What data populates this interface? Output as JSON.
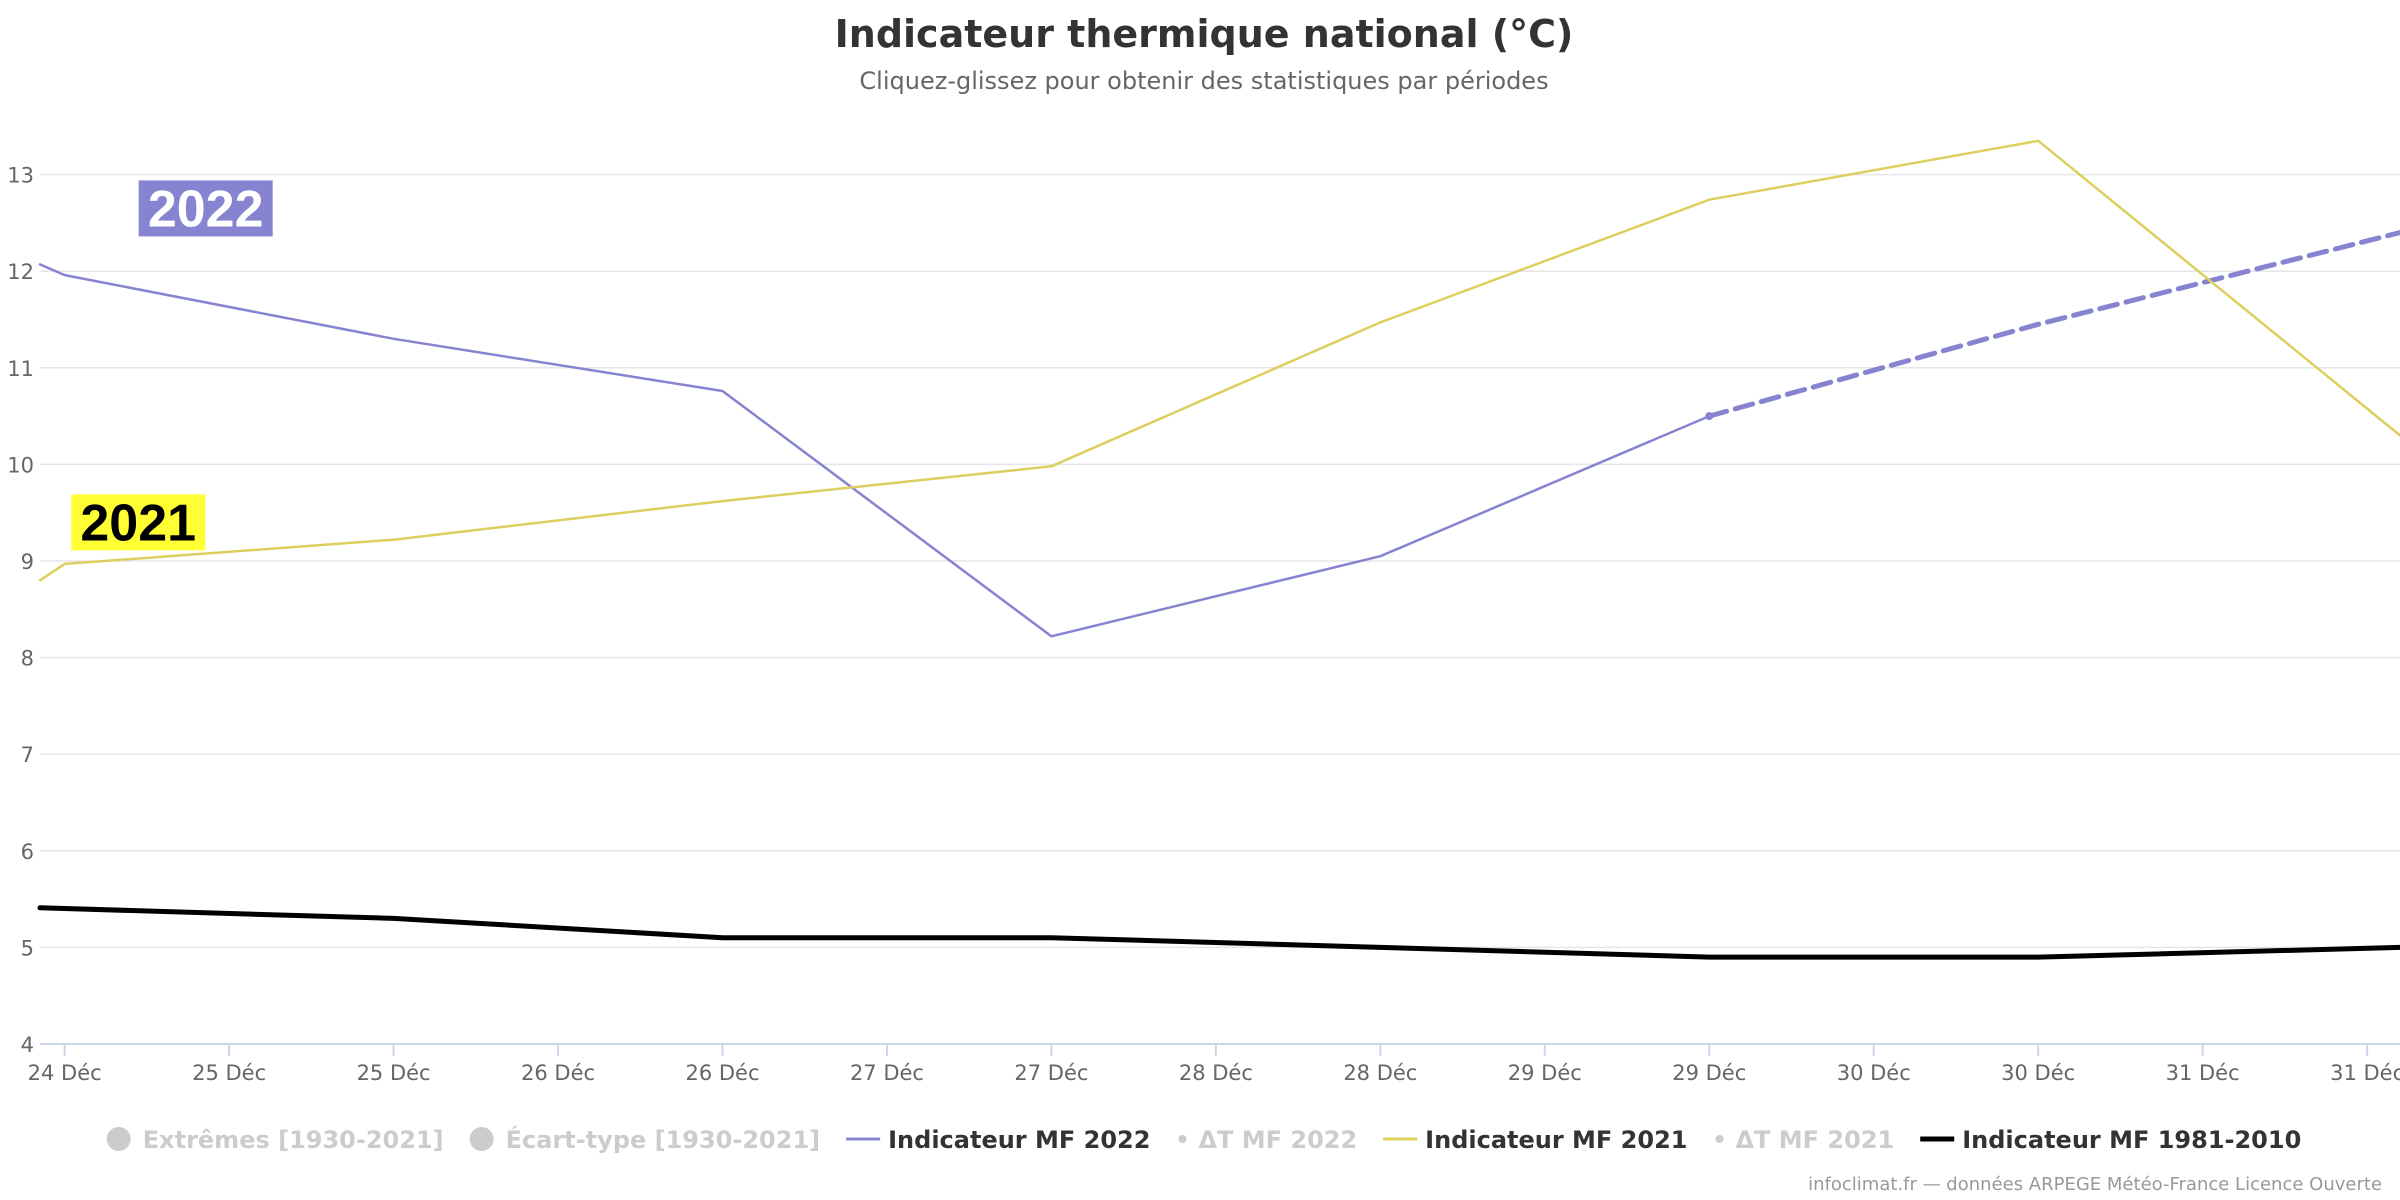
{
  "chart_data": {
    "type": "line",
    "title": "Indicateur thermique national (°C)",
    "subtitle": "Cliquez-glissez pour obtenir des statistiques par périodes",
    "xlabel": "",
    "ylabel": "",
    "x_ticks": [
      "24 Déc",
      "25 Déc",
      "25 Déc",
      "26 Déc",
      "26 Déc",
      "27 Déc",
      "27 Déc",
      "28 Déc",
      "28 Déc",
      "29 Déc",
      "29 Déc",
      "30 Déc",
      "30 Déc",
      "31 Déc",
      "31 Déc"
    ],
    "x_range": [
      -0.15,
      14.2
    ],
    "ylim": [
      4,
      14
    ],
    "y_ticks": [
      4,
      5,
      6,
      7,
      8,
      9,
      10,
      11,
      12,
      13
    ],
    "grid": true,
    "legend_position": "bottom",
    "series": [
      {
        "name": "Indicateur MF 2022",
        "color": "#8684d1",
        "x": [
          -0.15,
          0,
          2,
          4,
          6,
          8,
          10
        ],
        "y": [
          12.07,
          11.96,
          11.3,
          10.76,
          8.22,
          9.05,
          10.5
        ],
        "dash": false,
        "width": 2.5
      },
      {
        "name": "Indicateur MF 2022",
        "color": "#8684d1",
        "x": [
          10,
          12,
          14.2
        ],
        "y": [
          10.5,
          11.45,
          12.4
        ],
        "dash": true,
        "width": 5,
        "legend": false
      },
      {
        "name": "Indicateur MF 2021",
        "color": "#dccf5e",
        "x": [
          -0.15,
          0,
          2,
          4,
          6,
          8,
          10,
          12,
          14.2
        ],
        "y": [
          8.8,
          8.97,
          9.22,
          9.62,
          9.98,
          11.47,
          12.74,
          13.35,
          10.3
        ],
        "dash": false,
        "width": 2.5
      },
      {
        "name": "Indicateur MF 1981-2010",
        "color": "#000000",
        "x": [
          -0.15,
          2,
          4,
          6,
          8,
          10,
          12,
          14.2
        ],
        "y": [
          5.41,
          5.3,
          5.1,
          5.1,
          5.0,
          4.9,
          4.9,
          5.0
        ],
        "dash": false,
        "width": 5
      }
    ],
    "annotations": [
      {
        "text": "2022",
        "x": 0.45,
        "y": 12.65,
        "bg": "#8684d1",
        "color": "#ffffff"
      },
      {
        "text": "2021",
        "x": 0.04,
        "y": 9.4,
        "bg": "#ffff33",
        "color": "#000000"
      }
    ],
    "legend": [
      {
        "label": "Extrêmes [1930-2021]",
        "symbol": "circle",
        "color": "#cccccc",
        "active": false
      },
      {
        "label": "Écart-type [1930-2021]",
        "symbol": "circle",
        "color": "#cccccc",
        "active": false
      },
      {
        "label": "Indicateur MF 2022",
        "symbol": "line",
        "color": "#8684d1",
        "active": true
      },
      {
        "label": "ΔT MF 2022",
        "symbol": "dot",
        "color": "#cccccc",
        "active": false
      },
      {
        "label": "Indicateur MF 2021",
        "symbol": "line",
        "color": "#dccf5e",
        "active": true
      },
      {
        "label": "ΔT MF 2021",
        "symbol": "dot",
        "color": "#cccccc",
        "active": false
      },
      {
        "label": "Indicateur MF 1981-2010",
        "symbol": "thickline",
        "color": "#000000",
        "active": true
      }
    ],
    "credits": "infoclimat.fr — données ARPEGE Météo-France Licence Ouverte"
  }
}
